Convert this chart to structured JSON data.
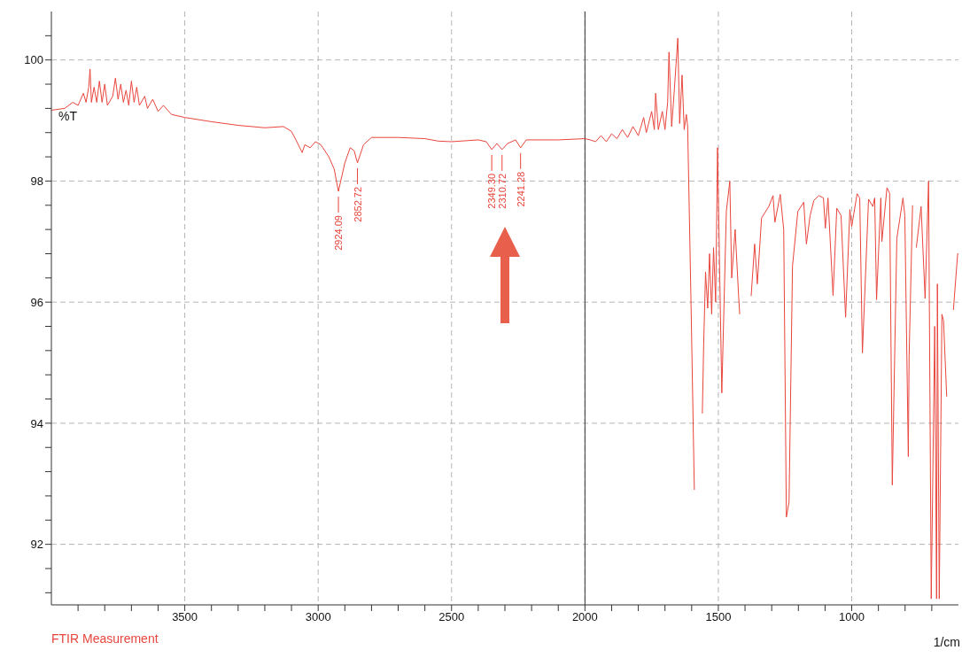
{
  "chart_data": {
    "type": "line",
    "xlabel": "1/cm",
    "ylabel": "%T",
    "xlim": [
      4000,
      600
    ],
    "xticks": [
      {
        "value": 3900,
        "label": null
      },
      {
        "value": 3800,
        "label": null
      },
      {
        "value": 3700,
        "label": null
      },
      {
        "value": 3600,
        "label": null
      },
      3500,
      {
        "value": 3400,
        "label": null
      },
      {
        "value": 3300,
        "label": null
      },
      {
        "value": 3200,
        "label": null
      },
      {
        "value": 3100,
        "label": null
      },
      3000,
      {
        "value": 2900,
        "label": null
      },
      {
        "value": 2800,
        "label": null
      },
      {
        "value": 2700,
        "label": null
      },
      {
        "value": 2600,
        "label": null
      },
      2500,
      {
        "value": 2400,
        "label": null
      },
      {
        "value": 2300,
        "label": null
      },
      {
        "value": 2200,
        "label": null
      },
      {
        "value": 2100,
        "label": null
      },
      2000,
      {
        "value": 1900,
        "label": null
      },
      {
        "value": 1800,
        "label": null
      },
      {
        "value": 1700,
        "label": null
      },
      {
        "value": 1600,
        "label": null
      },
      1500,
      {
        "value": 1400,
        "label": null
      },
      {
        "value": 1300,
        "label": null
      },
      {
        "value": 1200,
        "label": null
      },
      {
        "value": 1100,
        "label": null
      },
      1000,
      {
        "value": 900,
        "label": null
      },
      {
        "value": 800,
        "label": null
      },
      {
        "value": 700,
        "label": null
      }
    ],
    "ylim": [
      91,
      100.8
    ],
    "yticks": [
      {
        "value": 91.2,
        "label": null
      },
      {
        "value": 91.6,
        "label": null
      },
      92,
      {
        "value": 92.4,
        "label": null
      },
      {
        "value": 92.8,
        "label": null
      },
      {
        "value": 93.2,
        "label": null
      },
      {
        "value": 93.6,
        "label": null
      },
      94,
      {
        "value": 94.4,
        "label": null
      },
      {
        "value": 94.8,
        "label": null
      },
      {
        "value": 95.2,
        "label": null
      },
      {
        "value": 95.6,
        "label": null
      },
      96,
      {
        "value": 96.4,
        "label": null
      },
      {
        "value": 96.8,
        "label": null
      },
      {
        "value": 97.2,
        "label": null
      },
      {
        "value": 97.6,
        "label": null
      },
      98,
      {
        "value": 98.4,
        "label": null
      },
      {
        "value": 98.8,
        "label": null
      },
      {
        "value": 99.2,
        "label": null
      },
      {
        "value": 99.6,
        "label": null
      },
      100,
      {
        "value": 100.4,
        "label": null
      }
    ],
    "grid": true,
    "legend": "bottom left",
    "marker": "none",
    "line_style": "solid",
    "ref_lines": [
      {
        "axis": "x",
        "value": 2000,
        "color": "#333333"
      }
    ],
    "annotations": [
      {
        "text": "2924.09",
        "x": 2924.09,
        "y": 97.83
      },
      {
        "text": "2852.72",
        "x": 2852.72,
        "y": 98.3
      },
      {
        "text": "2349.30",
        "x": 2349.3,
        "y": 98.52
      },
      {
        "text": "2310.72",
        "x": 2310.72,
        "y": 98.52
      },
      {
        "text": "2241.28",
        "x": 2241.28,
        "y": 98.55
      }
    ],
    "x": [
      4000,
      3950,
      3920,
      3900,
      3880,
      3870,
      3860,
      3855,
      3850,
      3840,
      3830,
      3820,
      3810,
      3800,
      3790,
      3770,
      3760,
      3750,
      3740,
      3730,
      3720,
      3710,
      3700,
      3690,
      3680,
      3670,
      3650,
      3640,
      3620,
      3600,
      3580,
      3550,
      3500,
      3400,
      3300,
      3200,
      3130,
      3100,
      3080,
      3060,
      3050,
      3030,
      3010,
      2990,
      2960,
      2940,
      2924.09,
      2900,
      2880,
      2865,
      2852.72,
      2830,
      2800,
      2700,
      2600,
      2550,
      2500,
      2400,
      2370,
      2349.3,
      2330,
      2310.72,
      2290,
      2260,
      2241.28,
      2220,
      2100,
      2000,
      1980,
      1960,
      1940,
      1920,
      1900,
      1880,
      1860,
      1840,
      1820,
      1800,
      1780,
      1770,
      1750,
      1740,
      1735,
      1725,
      1710,
      1700,
      1690,
      1685,
      1675,
      1665,
      1652,
      1645,
      1636,
      1628,
      1620,
      1615,
      1603,
      1590,
      1576,
      1566,
      1560,
      1555,
      1548,
      1540,
      1533,
      1525,
      1518,
      1510,
      1503,
      1495,
      1487,
      1470,
      1457,
      1450,
      1437,
      1424,
      1420,
      1404,
      1400,
      1377,
      1364,
      1354,
      1338,
      1311,
      1295,
      1288,
      1268,
      1255,
      1245,
      1235,
      1222,
      1202,
      1180,
      1170,
      1156,
      1142,
      1123,
      1106,
      1099,
      1089,
      1070,
      1056,
      1040,
      1023,
      1007,
      1000,
      980,
      970,
      960,
      937,
      921,
      914,
      907,
      891,
      887,
      868,
      858,
      848,
      831,
      808,
      801,
      788,
      785,
      772,
      765,
      758,
      740,
      725,
      712,
      702,
      689,
      682,
      679,
      672,
      662,
      656,
      644,
      632,
      619,
      603,
      600
    ],
    "series": [
      {
        "name": "FTIR Measurement",
        "color": "#e8453c",
        "values": [
          99.17,
          99.2,
          99.3,
          99.25,
          99.45,
          99.3,
          99.55,
          99.85,
          99.3,
          99.55,
          99.3,
          99.65,
          99.3,
          99.6,
          99.25,
          99.4,
          99.7,
          99.35,
          99.6,
          99.3,
          99.5,
          99.25,
          99.65,
          99.3,
          99.55,
          99.25,
          99.4,
          99.2,
          99.35,
          99.15,
          99.25,
          99.1,
          99.05,
          98.98,
          98.92,
          98.88,
          98.9,
          98.82,
          98.65,
          98.47,
          98.6,
          98.55,
          98.65,
          98.6,
          98.4,
          98.2,
          97.83,
          98.3,
          98.55,
          98.5,
          98.3,
          98.6,
          98.72,
          98.72,
          98.7,
          98.66,
          98.65,
          98.68,
          98.65,
          98.52,
          98.62,
          98.52,
          98.62,
          98.68,
          98.55,
          98.68,
          98.68,
          98.7,
          98.68,
          98.65,
          98.75,
          98.65,
          98.78,
          98.7,
          98.85,
          98.72,
          98.9,
          98.75,
          99.05,
          98.8,
          99.15,
          98.85,
          99.45,
          98.85,
          99.15,
          98.85,
          99.3,
          100.13,
          98.9,
          99.5,
          100.36,
          98.95,
          99.75,
          98.85,
          99.1,
          98.9,
          96.13,
          92.9,
          null,
          null,
          94.16,
          95.3,
          96.5,
          95.9,
          96.8,
          95.8,
          96.9,
          96,
          98.55,
          96.5,
          94.5,
          97.5,
          98,
          96.4,
          97.2,
          96.1,
          95.8,
          null,
          null,
          96.1,
          96.96,
          96.3,
          97.39,
          97.58,
          97.76,
          97.32,
          97.78,
          97.2,
          92.45,
          92.7,
          96.6,
          97.5,
          97.65,
          96.96,
          97.43,
          97.68,
          97.76,
          97.72,
          97.22,
          97.72,
          96.11,
          97.55,
          97.43,
          95.75,
          97.53,
          97.25,
          97.79,
          97.72,
          95.16,
          97.7,
          97.58,
          97.72,
          96.04,
          97.72,
          97,
          97.89,
          97.8,
          92.98,
          97.05,
          97.72,
          97.43,
          93.45,
          95.1,
          97.6,
          null,
          96.9,
          97.58,
          96.06,
          98,
          91.1,
          95.6,
          91.1,
          96.3,
          91.1,
          95.8,
          95.7,
          94.44,
          null,
          95.87,
          96.8,
          96.8
        ]
      }
    ]
  }
}
